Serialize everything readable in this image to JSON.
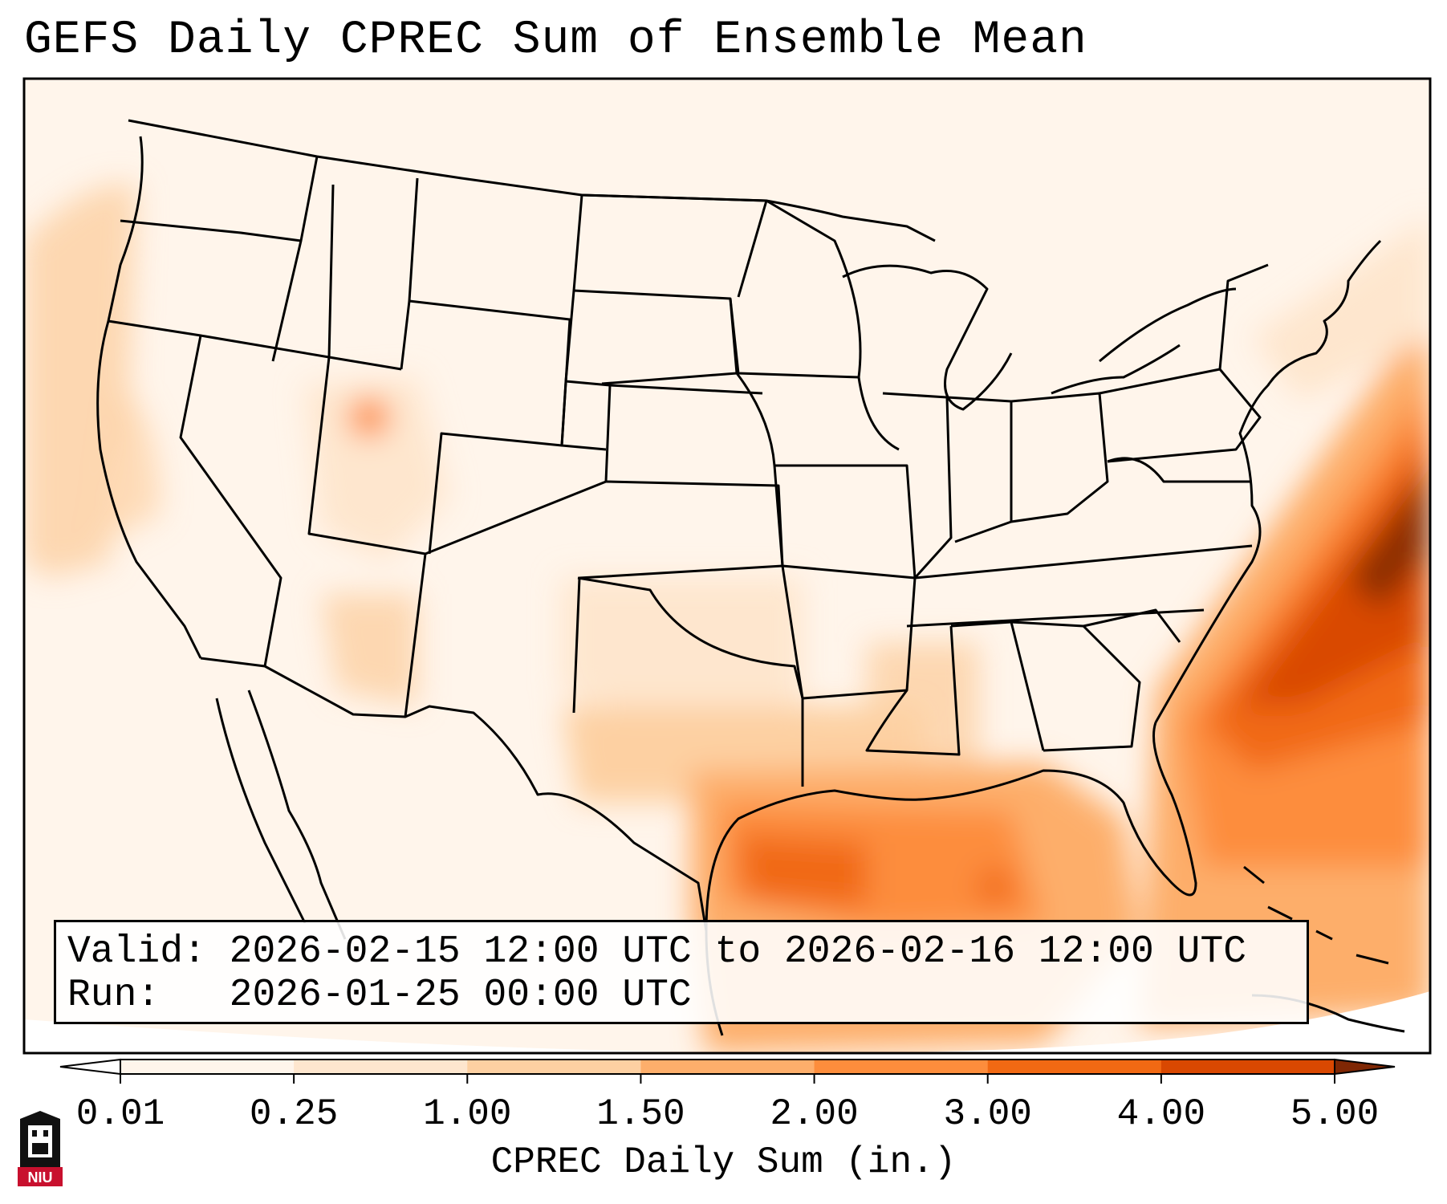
{
  "title": "GEFS Daily CPREC Sum of Ensemble Mean",
  "info": {
    "valid_label": "Valid:",
    "valid_value": "2026-02-15 12:00 UTC to 2026-02-16 12:00 UTC",
    "run_label": "Run:",
    "run_value": "2026-01-25 00:00 UTC"
  },
  "colorbar": {
    "label": "CPREC Daily Sum (in.)",
    "ticks": [
      "0.01",
      "0.25",
      "1.00",
      "1.50",
      "2.00",
      "3.00",
      "4.00",
      "5.00"
    ],
    "colors": [
      "#fff5eb",
      "#fee6ce",
      "#fdd0a2",
      "#fdae6b",
      "#fd8d3c",
      "#f16913",
      "#d94801",
      "#8c2d04"
    ],
    "under_color": "#ffffff",
    "over_color": "#7f2704"
  },
  "logo": {
    "text": "NIU",
    "color": "#c8102e"
  }
}
